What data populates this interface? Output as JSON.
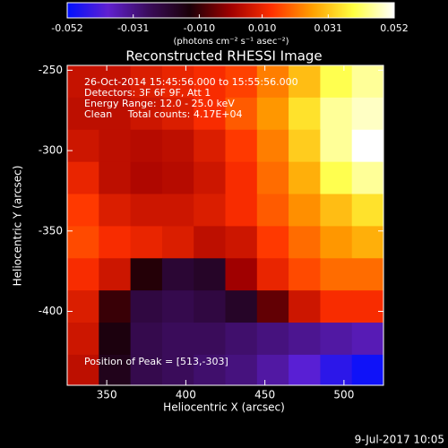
{
  "chart_data": {
    "type": "heatmap",
    "title": "Reconstructed RHESSI Image",
    "x_label": "Heliocentric X (arcsec)",
    "y_label": "Heliocentric Y (arcsec)",
    "colorbar_label": "(photons cm⁻² s⁻¹ asec⁻²)",
    "annotations": [
      "26-Oct-2014 15:45:56.000 to 15:55:56.000",
      "Detectors: 3F 6F 9F, Att 1",
      "Energy Range: 12.0 - 25.0 keV",
      "Clean     Total counts: 4.17E+04"
    ],
    "peak_label": "Position of Peak = [513,-303]",
    "timestamp": "9-Jul-2017 10:05",
    "xlim": [
      325,
      525
    ],
    "ylim": [
      -446,
      -247
    ],
    "xticks": [
      350,
      400,
      450,
      500
    ],
    "yticks": [
      -250,
      -300,
      -350,
      -400
    ],
    "clim": [
      -0.052,
      0.052
    ],
    "cticks": [
      -0.052,
      -0.031,
      {
        "value": -0.01,
        "label": "-0.010"
      },
      {
        "value": 0.01,
        "label": "0.010"
      },
      0.031,
      0.052
    ],
    "colormap": [
      "#0010ff",
      "#6020d0",
      "#3a0c5a",
      "#1a0008",
      "#a00000",
      "#ff3000",
      "#ffa000",
      "#ffff40",
      "#ffffff"
    ],
    "x": [
      335,
      355,
      375,
      395,
      415,
      435,
      455,
      475,
      495,
      515
    ],
    "y": [
      -257,
      -277,
      -297,
      -317,
      -337,
      -357,
      -377,
      -397,
      -417,
      -437
    ],
    "values": [
      [
        0.005,
        0.005,
        0.008,
        0.01,
        0.012,
        0.015,
        0.022,
        0.03,
        0.04,
        0.045
      ],
      [
        0.004,
        0.004,
        0.006,
        0.008,
        0.012,
        0.018,
        0.025,
        0.035,
        0.045,
        0.048
      ],
      [
        0.006,
        0.004,
        0.003,
        0.004,
        0.008,
        0.014,
        0.022,
        0.032,
        0.045,
        0.052
      ],
      [
        0.01,
        0.004,
        0.002,
        0.003,
        0.006,
        0.012,
        0.02,
        0.028,
        0.04,
        0.045
      ],
      [
        0.014,
        0.008,
        0.006,
        0.006,
        0.008,
        0.012,
        0.018,
        0.024,
        0.03,
        0.035
      ],
      [
        0.016,
        0.012,
        0.01,
        0.008,
        0.004,
        0.006,
        0.014,
        0.02,
        0.025,
        0.028
      ],
      [
        0.012,
        0.006,
        -0.012,
        -0.02,
        -0.018,
        0.0,
        0.01,
        0.016,
        0.02,
        0.02
      ],
      [
        0.008,
        -0.01,
        -0.022,
        -0.024,
        -0.022,
        -0.018,
        -0.006,
        0.006,
        0.012,
        0.012
      ],
      [
        0.006,
        -0.014,
        -0.024,
        -0.026,
        -0.026,
        -0.028,
        -0.03,
        -0.032,
        -0.034,
        -0.036
      ],
      [
        0.004,
        -0.016,
        -0.024,
        -0.026,
        -0.028,
        -0.03,
        -0.034,
        -0.04,
        -0.046,
        -0.05
      ]
    ]
  }
}
